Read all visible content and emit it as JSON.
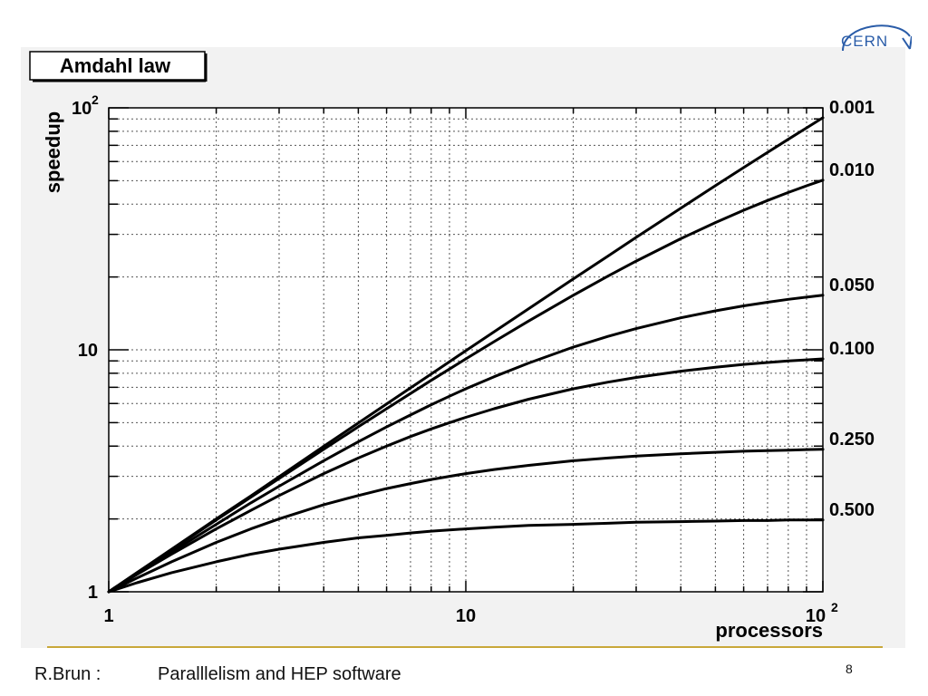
{
  "logo": {
    "text": "CERN"
  },
  "footer": {
    "author": "R.Brun :",
    "title": "Paralllelism and HEP software",
    "page_number": "8"
  },
  "chart_data": {
    "type": "line",
    "title": "Amdahl law",
    "xlabel": "processors",
    "ylabel": "speedup",
    "x_scale": "log",
    "y_scale": "log",
    "xlim": [
      1,
      100
    ],
    "ylim": [
      1,
      100
    ],
    "grid": true,
    "x_ticks": [
      {
        "value": 1,
        "base": "1",
        "exp": ""
      },
      {
        "value": 10,
        "base": "10",
        "exp": ""
      },
      {
        "value": 100,
        "base": "10",
        "exp": "2"
      }
    ],
    "y_ticks": [
      {
        "value": 1,
        "base": "1",
        "exp": ""
      },
      {
        "value": 10,
        "base": "10",
        "exp": ""
      },
      {
        "value": 100,
        "base": "10",
        "exp": "2"
      }
    ],
    "x": [
      1,
      1.2,
      1.5,
      2,
      2.5,
      3,
      4,
      5,
      6,
      7,
      8,
      9,
      10,
      12,
      15,
      20,
      25,
      30,
      40,
      50,
      60,
      70,
      80,
      90,
      100
    ],
    "series": [
      {
        "name": "0.001",
        "values": [
          1.0,
          1.2,
          1.5,
          2.0,
          2.49,
          2.99,
          3.99,
          4.98,
          5.97,
          6.96,
          7.94,
          8.93,
          9.91,
          11.87,
          14.79,
          19.62,
          24.4,
          29.16,
          38.49,
          47.67,
          56.66,
          65.48,
          74.14,
          82.64,
          90.99
        ]
      },
      {
        "name": "0.010",
        "values": [
          1.0,
          1.2,
          1.49,
          1.98,
          2.46,
          2.94,
          3.88,
          4.81,
          5.71,
          6.6,
          7.48,
          8.33,
          9.17,
          10.81,
          13.16,
          16.81,
          20.16,
          23.26,
          28.78,
          33.56,
          37.74,
          41.42,
          44.69,
          47.62,
          50.25
        ]
      },
      {
        "name": "0.050",
        "values": [
          1.0,
          1.19,
          1.46,
          1.9,
          2.33,
          2.73,
          3.48,
          4.17,
          4.8,
          5.38,
          5.93,
          6.43,
          6.9,
          7.74,
          8.82,
          10.26,
          11.36,
          12.24,
          13.56,
          14.49,
          15.19,
          15.73,
          16.16,
          16.51,
          16.81
        ]
      },
      {
        "name": "0.100",
        "values": [
          1.0,
          1.18,
          1.43,
          1.82,
          2.17,
          2.5,
          3.08,
          3.57,
          4.0,
          4.38,
          4.71,
          5.0,
          5.26,
          5.71,
          6.25,
          6.9,
          7.35,
          7.69,
          8.16,
          8.47,
          8.7,
          8.86,
          9.0,
          9.09,
          9.17
        ]
      },
      {
        "name": "0.250",
        "values": [
          1.0,
          1.14,
          1.33,
          1.6,
          1.82,
          2.0,
          2.29,
          2.5,
          2.67,
          2.8,
          2.91,
          3.0,
          3.08,
          3.2,
          3.33,
          3.48,
          3.57,
          3.64,
          3.72,
          3.77,
          3.81,
          3.83,
          3.85,
          3.87,
          3.88
        ]
      },
      {
        "name": "0.500",
        "values": [
          1.0,
          1.09,
          1.2,
          1.33,
          1.43,
          1.5,
          1.6,
          1.67,
          1.71,
          1.75,
          1.78,
          1.8,
          1.82,
          1.85,
          1.88,
          1.9,
          1.92,
          1.94,
          1.95,
          1.96,
          1.97,
          1.97,
          1.98,
          1.98,
          1.98
        ]
      }
    ],
    "colors": {
      "line": "#000000",
      "grid": "#555555",
      "panel": "#f2f2f2",
      "plot_bg": "#ffffff"
    }
  }
}
